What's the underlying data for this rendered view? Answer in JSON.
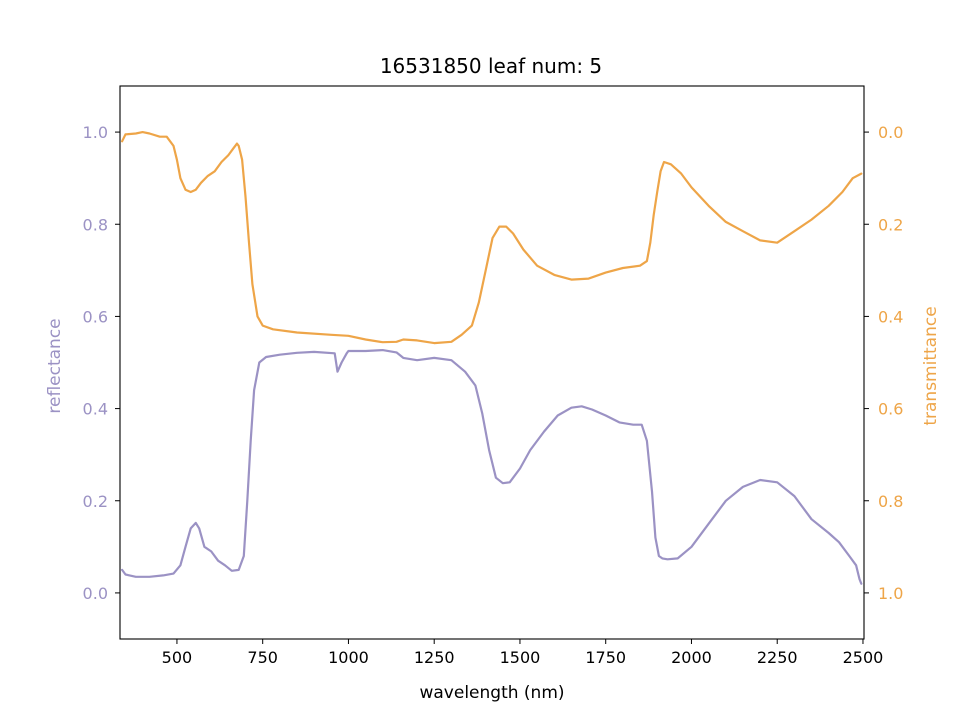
{
  "chart_data": {
    "type": "line",
    "title": "16531850 leaf num: 5",
    "xlabel": "wavelength (nm)",
    "ylabel_left": "reflectance",
    "ylabel_right": "transmittance",
    "xlim": [
      334,
      2503
    ],
    "ylim_left": [
      -0.1,
      1.1
    ],
    "ylim_right": [
      1.1,
      -0.1
    ],
    "right_axis_inverted": true,
    "x_ticks": [
      500,
      750,
      1000,
      1250,
      1500,
      1750,
      2000,
      2250,
      2500
    ],
    "y_ticks_left": [
      0.0,
      0.2,
      0.4,
      0.6,
      0.8,
      1.0
    ],
    "y_ticks_right": [
      0.0,
      0.2,
      0.4,
      0.6,
      0.8,
      1.0
    ],
    "colors": {
      "reflectance": "#9b92c4",
      "transmittance": "#eea548",
      "axis": "#000000"
    },
    "series": [
      {
        "name": "reflectance",
        "axis": "left",
        "points": [
          [
            340,
            0.05
          ],
          [
            350,
            0.04
          ],
          [
            380,
            0.035
          ],
          [
            420,
            0.035
          ],
          [
            460,
            0.038
          ],
          [
            490,
            0.042
          ],
          [
            510,
            0.06
          ],
          [
            525,
            0.1
          ],
          [
            540,
            0.14
          ],
          [
            555,
            0.152
          ],
          [
            565,
            0.14
          ],
          [
            580,
            0.1
          ],
          [
            600,
            0.09
          ],
          [
            620,
            0.07
          ],
          [
            640,
            0.06
          ],
          [
            660,
            0.048
          ],
          [
            680,
            0.05
          ],
          [
            695,
            0.08
          ],
          [
            705,
            0.2
          ],
          [
            715,
            0.33
          ],
          [
            725,
            0.44
          ],
          [
            740,
            0.5
          ],
          [
            760,
            0.512
          ],
          [
            800,
            0.517
          ],
          [
            850,
            0.521
          ],
          [
            900,
            0.523
          ],
          [
            960,
            0.52
          ],
          [
            968,
            0.48
          ],
          [
            980,
            0.5
          ],
          [
            995,
            0.52
          ],
          [
            1000,
            0.525
          ],
          [
            1050,
            0.525
          ],
          [
            1100,
            0.527
          ],
          [
            1140,
            0.522
          ],
          [
            1160,
            0.51
          ],
          [
            1200,
            0.505
          ],
          [
            1250,
            0.51
          ],
          [
            1300,
            0.505
          ],
          [
            1340,
            0.48
          ],
          [
            1370,
            0.45
          ],
          [
            1390,
            0.39
          ],
          [
            1410,
            0.31
          ],
          [
            1430,
            0.25
          ],
          [
            1450,
            0.238
          ],
          [
            1470,
            0.24
          ],
          [
            1500,
            0.27
          ],
          [
            1530,
            0.31
          ],
          [
            1570,
            0.35
          ],
          [
            1610,
            0.385
          ],
          [
            1650,
            0.402
          ],
          [
            1680,
            0.405
          ],
          [
            1710,
            0.398
          ],
          [
            1750,
            0.385
          ],
          [
            1790,
            0.37
          ],
          [
            1830,
            0.365
          ],
          [
            1855,
            0.365
          ],
          [
            1870,
            0.33
          ],
          [
            1885,
            0.22
          ],
          [
            1895,
            0.12
          ],
          [
            1905,
            0.08
          ],
          [
            1915,
            0.075
          ],
          [
            1930,
            0.073
          ],
          [
            1960,
            0.075
          ],
          [
            2000,
            0.1
          ],
          [
            2050,
            0.15
          ],
          [
            2100,
            0.2
          ],
          [
            2150,
            0.23
          ],
          [
            2200,
            0.245
          ],
          [
            2250,
            0.24
          ],
          [
            2300,
            0.21
          ],
          [
            2350,
            0.16
          ],
          [
            2400,
            0.13
          ],
          [
            2430,
            0.11
          ],
          [
            2460,
            0.08
          ],
          [
            2480,
            0.06
          ],
          [
            2490,
            0.03
          ],
          [
            2495,
            0.02
          ]
        ]
      },
      {
        "name": "transmittance",
        "axis": "right",
        "points": [
          [
            340,
            0.02
          ],
          [
            350,
            0.005
          ],
          [
            380,
            0.003
          ],
          [
            400,
            0.0
          ],
          [
            420,
            0.003
          ],
          [
            450,
            0.01
          ],
          [
            470,
            0.01
          ],
          [
            490,
            0.03
          ],
          [
            500,
            0.06
          ],
          [
            510,
            0.1
          ],
          [
            525,
            0.125
          ],
          [
            540,
            0.13
          ],
          [
            555,
            0.125
          ],
          [
            570,
            0.11
          ],
          [
            590,
            0.095
          ],
          [
            610,
            0.085
          ],
          [
            630,
            0.065
          ],
          [
            650,
            0.05
          ],
          [
            665,
            0.035
          ],
          [
            675,
            0.025
          ],
          [
            680,
            0.03
          ],
          [
            690,
            0.06
          ],
          [
            700,
            0.14
          ],
          [
            710,
            0.24
          ],
          [
            720,
            0.33
          ],
          [
            735,
            0.4
          ],
          [
            750,
            0.42
          ],
          [
            780,
            0.428
          ],
          [
            850,
            0.435
          ],
          [
            950,
            0.44
          ],
          [
            1000,
            0.442
          ],
          [
            1050,
            0.45
          ],
          [
            1100,
            0.456
          ],
          [
            1140,
            0.455
          ],
          [
            1160,
            0.45
          ],
          [
            1200,
            0.452
          ],
          [
            1250,
            0.458
          ],
          [
            1300,
            0.455
          ],
          [
            1330,
            0.44
          ],
          [
            1360,
            0.42
          ],
          [
            1380,
            0.37
          ],
          [
            1400,
            0.3
          ],
          [
            1420,
            0.23
          ],
          [
            1440,
            0.205
          ],
          [
            1460,
            0.205
          ],
          [
            1480,
            0.22
          ],
          [
            1510,
            0.255
          ],
          [
            1550,
            0.29
          ],
          [
            1600,
            0.31
          ],
          [
            1650,
            0.32
          ],
          [
            1700,
            0.318
          ],
          [
            1750,
            0.305
          ],
          [
            1800,
            0.295
          ],
          [
            1850,
            0.29
          ],
          [
            1870,
            0.28
          ],
          [
            1880,
            0.24
          ],
          [
            1890,
            0.18
          ],
          [
            1900,
            0.13
          ],
          [
            1910,
            0.085
          ],
          [
            1920,
            0.065
          ],
          [
            1940,
            0.07
          ],
          [
            1970,
            0.09
          ],
          [
            2000,
            0.12
          ],
          [
            2050,
            0.16
          ],
          [
            2100,
            0.195
          ],
          [
            2150,
            0.215
          ],
          [
            2200,
            0.235
          ],
          [
            2250,
            0.24
          ],
          [
            2300,
            0.215
          ],
          [
            2350,
            0.19
          ],
          [
            2400,
            0.16
          ],
          [
            2440,
            0.13
          ],
          [
            2470,
            0.1
          ],
          [
            2495,
            0.09
          ]
        ]
      }
    ]
  }
}
